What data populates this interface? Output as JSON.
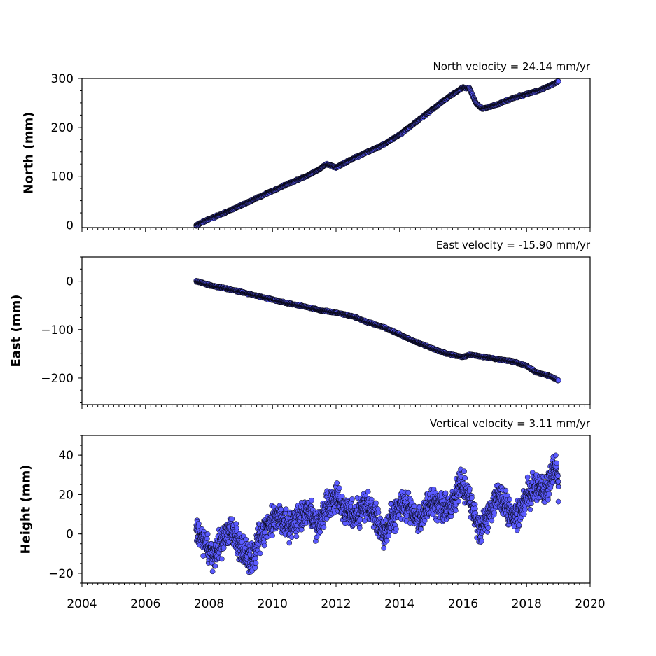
{
  "colors": {
    "marker_fill": "#5a5aff",
    "marker_edge": "#000000"
  },
  "chart_data": [
    {
      "type": "scatter",
      "annotation": "North velocity = 24.14 mm/yr",
      "ylabel": "North (mm)",
      "xlim": [
        2004,
        2020
      ],
      "ylim": [
        -5,
        300
      ],
      "yticks": [
        0,
        100,
        200,
        300
      ],
      "ytick_labels": [
        "0",
        "100",
        "200",
        "300"
      ],
      "xticks": [
        2004,
        2006,
        2008,
        2010,
        2012,
        2014,
        2016,
        2018,
        2020
      ],
      "xtick_labels": [],
      "series": [
        {
          "x": [
            2007.6,
            2008.0,
            2008.5,
            2009.0,
            2009.5,
            2010.0,
            2010.5,
            2011.0,
            2011.5,
            2011.7,
            2012.0,
            2012.5,
            2013.0,
            2013.5,
            2014.0,
            2014.5,
            2015.0,
            2015.5,
            2016.0,
            2016.2,
            2016.4,
            2016.6,
            2017.0,
            2017.5,
            2018.0,
            2018.5,
            2019.0
          ],
          "y": [
            0,
            12,
            25,
            40,
            55,
            70,
            85,
            98,
            115,
            125,
            118,
            135,
            150,
            165,
            185,
            210,
            235,
            260,
            282,
            280,
            250,
            238,
            245,
            258,
            268,
            278,
            294
          ]
        }
      ]
    },
    {
      "type": "scatter",
      "annotation": "East velocity = -15.90 mm/yr",
      "ylabel": "East (mm)",
      "xlim": [
        2004,
        2020
      ],
      "ylim": [
        -255,
        50
      ],
      "yticks": [
        0,
        -100,
        -200
      ],
      "ytick_labels": [
        "0",
        "−100",
        "−200"
      ],
      "xticks": [
        2004,
        2006,
        2008,
        2010,
        2012,
        2014,
        2016,
        2018,
        2020
      ],
      "xtick_labels": [],
      "series": [
        {
          "x": [
            2007.6,
            2008.0,
            2008.5,
            2009.0,
            2009.5,
            2010.0,
            2010.5,
            2011.0,
            2011.5,
            2012.0,
            2012.5,
            2013.0,
            2013.5,
            2014.0,
            2014.5,
            2015.0,
            2015.5,
            2016.0,
            2016.2,
            2016.5,
            2017.0,
            2017.5,
            2018.0,
            2018.3,
            2018.7,
            2019.0
          ],
          "y": [
            0,
            -8,
            -15,
            -22,
            -30,
            -38,
            -46,
            -52,
            -60,
            -65,
            -72,
            -85,
            -95,
            -110,
            -125,
            -138,
            -150,
            -157,
            -152,
            -155,
            -160,
            -165,
            -175,
            -188,
            -195,
            -205
          ]
        }
      ]
    },
    {
      "type": "scatter",
      "annotation": "Vertical velocity = 3.11 mm/yr",
      "ylabel": "Height (mm)",
      "xlim": [
        2004,
        2020
      ],
      "ylim": [
        -25,
        50
      ],
      "yticks": [
        40,
        20,
        0,
        -20
      ],
      "ytick_labels": [
        "40",
        "20",
        "0",
        "−20"
      ],
      "xticks": [
        2004,
        2006,
        2008,
        2010,
        2012,
        2014,
        2016,
        2018,
        2020
      ],
      "xtick_labels": [
        "2004",
        "2006",
        "2008",
        "2010",
        "2012",
        "2014",
        "2016",
        "2018",
        "2020"
      ],
      "series": [
        {
          "x": [
            2007.6,
            2007.9,
            2008.1,
            2008.4,
            2008.7,
            2009.0,
            2009.3,
            2009.6,
            2009.9,
            2010.2,
            2010.5,
            2010.8,
            2011.1,
            2011.4,
            2011.7,
            2012.0,
            2012.3,
            2012.6,
            2012.9,
            2013.2,
            2013.5,
            2013.8,
            2014.1,
            2014.4,
            2014.7,
            2015.0,
            2015.3,
            2015.6,
            2015.9,
            2016.2,
            2016.5,
            2016.8,
            2017.1,
            2017.4,
            2017.7,
            2018.0,
            2018.3,
            2018.6,
            2018.9,
            2019.0
          ],
          "y": [
            2,
            -6,
            -12,
            -4,
            2,
            -8,
            -14,
            -2,
            6,
            10,
            3,
            8,
            12,
            4,
            14,
            20,
            12,
            8,
            15,
            10,
            0,
            8,
            16,
            10,
            8,
            18,
            14,
            12,
            26,
            18,
            2,
            10,
            20,
            12,
            8,
            20,
            24,
            22,
            35,
            24
          ]
        }
      ]
    }
  ]
}
